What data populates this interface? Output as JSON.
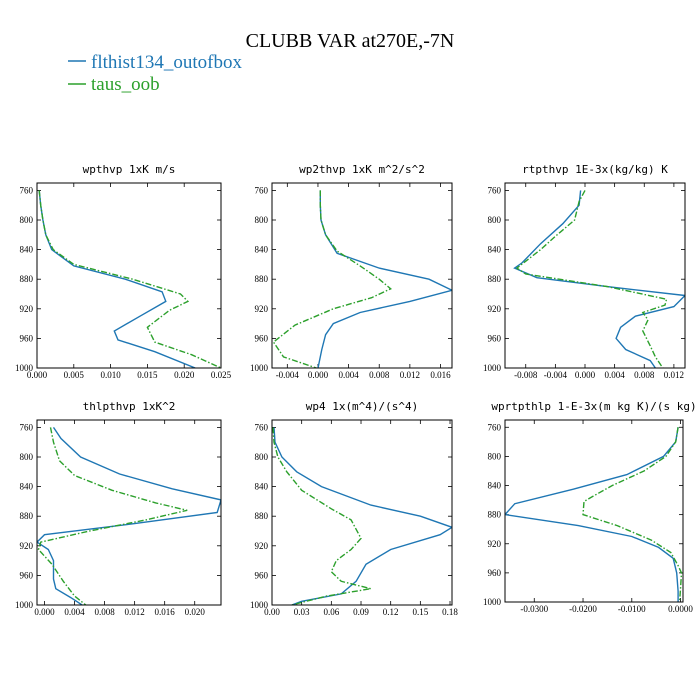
{
  "figure": {
    "title": "CLUBB VAR at270E,-7N",
    "legend": [
      {
        "label": "flthist134_outofbox",
        "color": "#1f77b4",
        "dash": "solid"
      },
      {
        "label": "taus_oob",
        "color": "#2ca02c",
        "dash": "dashdot"
      }
    ]
  },
  "chart_data": [
    {
      "type": "line",
      "title": "wpthvp  1xK m/s",
      "xlim": [
        0,
        0.025
      ],
      "xticks": [
        0.0,
        0.005,
        0.01,
        0.015,
        0.02,
        0.025
      ],
      "xtick_labels": [
        "0.000",
        "0.005",
        "0.010",
        "0.015",
        "0.020",
        "0.025"
      ],
      "ylim": [
        1000,
        750
      ],
      "yticks": [
        760,
        800,
        840,
        880,
        920,
        960,
        1000
      ],
      "series": [
        {
          "name": "flthist134_outofbox",
          "points": [
            [
              0.0003,
              760
            ],
            [
              0.0005,
              780
            ],
            [
              0.0008,
              800
            ],
            [
              0.0012,
              820
            ],
            [
              0.002,
              840
            ],
            [
              0.005,
              862
            ],
            [
              0.012,
              880
            ],
            [
              0.017,
              897
            ],
            [
              0.0175,
              910
            ],
            [
              0.014,
              930
            ],
            [
              0.0105,
              950
            ],
            [
              0.011,
              962
            ],
            [
              0.016,
              978
            ],
            [
              0.0215,
              1000
            ]
          ]
        },
        {
          "name": "taus_oob",
          "points": [
            [
              0.0003,
              760
            ],
            [
              0.0005,
              780
            ],
            [
              0.0008,
              800
            ],
            [
              0.0012,
              820
            ],
            [
              0.0022,
              840
            ],
            [
              0.005,
              860
            ],
            [
              0.013,
              880
            ],
            [
              0.0195,
              900
            ],
            [
              0.0205,
              910
            ],
            [
              0.018,
              922
            ],
            [
              0.015,
              945
            ],
            [
              0.016,
              965
            ],
            [
              0.021,
              982
            ],
            [
              0.025,
              1000
            ]
          ]
        }
      ]
    },
    {
      "type": "line",
      "title": "wp2thvp  1xK m^2/s^2",
      "xlim": [
        -0.006,
        0.0175
      ],
      "xticks": [
        -0.004,
        0.0,
        0.004,
        0.008,
        0.012,
        0.016
      ],
      "xtick_labels": [
        "-0.004",
        "0.000",
        "0.004",
        "0.008",
        "0.012",
        "0.016"
      ],
      "ylim": [
        1000,
        750
      ],
      "yticks": [
        760,
        800,
        840,
        880,
        920,
        960,
        1000
      ],
      "series": [
        {
          "name": "flthist134_outofbox",
          "points": [
            [
              0.0003,
              760
            ],
            [
              0.0003,
              780
            ],
            [
              0.0004,
              800
            ],
            [
              0.001,
              820
            ],
            [
              0.0025,
              845
            ],
            [
              0.008,
              865
            ],
            [
              0.0145,
              880
            ],
            [
              0.0175,
              895
            ],
            [
              0.012,
              910
            ],
            [
              0.0055,
              925
            ],
            [
              0.002,
              940
            ],
            [
              0.001,
              955
            ],
            [
              0.0005,
              975
            ],
            [
              0.0,
              1000
            ]
          ]
        },
        {
          "name": "taus_oob",
          "points": [
            [
              0.0003,
              760
            ],
            [
              0.0003,
              780
            ],
            [
              0.0004,
              800
            ],
            [
              0.001,
              820
            ],
            [
              0.0025,
              842
            ],
            [
              0.0055,
              862
            ],
            [
              0.008,
              880
            ],
            [
              0.0095,
              893
            ],
            [
              0.007,
              905
            ],
            [
              0.002,
              920
            ],
            [
              -0.003,
              942
            ],
            [
              -0.0058,
              965
            ],
            [
              -0.0045,
              985
            ],
            [
              -0.0002,
              1000
            ]
          ]
        }
      ]
    },
    {
      "type": "line",
      "title": "rtpthvp  1E-3x(kg/kg) K",
      "xlim": [
        -0.0108,
        0.0135
      ],
      "xticks": [
        -0.008,
        -0.004,
        0.0,
        0.004,
        0.008,
        0.012
      ],
      "xtick_labels": [
        "-0.008",
        "-0.004",
        "0.000",
        "0.004",
        "0.008",
        "0.012"
      ],
      "ylim": [
        1000,
        750
      ],
      "yticks": [
        760,
        800,
        840,
        880,
        920,
        960,
        1000
      ],
      "series": [
        {
          "name": "flthist134_outofbox",
          "points": [
            [
              -0.0006,
              760
            ],
            [
              -0.0008,
              780
            ],
            [
              -0.003,
              805
            ],
            [
              -0.006,
              832
            ],
            [
              -0.0085,
              858
            ],
            [
              -0.0095,
              865
            ],
            [
              -0.0065,
              878
            ],
            [
              0.003,
              890
            ],
            [
              0.0135,
              902
            ],
            [
              0.012,
              917
            ],
            [
              0.0068,
              930
            ],
            [
              0.0048,
              945
            ],
            [
              0.0042,
              960
            ],
            [
              0.0055,
              975
            ],
            [
              0.0088,
              990
            ],
            [
              0.0095,
              1000
            ]
          ]
        },
        {
          "name": "taus_oob",
          "points": [
            [
              0.0,
              760
            ],
            [
              -0.0008,
              775
            ],
            [
              -0.0014,
              800
            ],
            [
              -0.004,
              822
            ],
            [
              -0.006,
              840
            ],
            [
              -0.0092,
              865
            ],
            [
              -0.008,
              873
            ],
            [
              0.003,
              890
            ],
            [
              0.011,
              907
            ],
            [
              0.0108,
              915
            ],
            [
              0.0078,
              925
            ],
            [
              0.0085,
              935
            ],
            [
              0.0078,
              950
            ],
            [
              0.0088,
              970
            ],
            [
              0.0095,
              985
            ],
            [
              0.0105,
              1000
            ]
          ]
        }
      ]
    },
    {
      "type": "line",
      "title": "thlpthvp  1xK^2",
      "xlim": [
        -0.001,
        0.0235
      ],
      "xticks": [
        0.0,
        0.004,
        0.008,
        0.012,
        0.016,
        0.02
      ],
      "xtick_labels": [
        "0.000",
        "0.004",
        "0.008",
        "0.012",
        "0.016",
        "0.020"
      ],
      "ylim": [
        1000,
        750
      ],
      "yticks": [
        760,
        800,
        840,
        880,
        920,
        960,
        1000
      ],
      "series": [
        {
          "name": "flthist134_outofbox",
          "points": [
            [
              0.0012,
              760
            ],
            [
              0.0022,
              775
            ],
            [
              0.0048,
              800
            ],
            [
              0.01,
              823
            ],
            [
              0.017,
              843
            ],
            [
              0.0235,
              858
            ],
            [
              0.023,
              875
            ],
            [
              0.012,
              890
            ],
            [
              0.0,
              905
            ],
            [
              -0.001,
              915
            ],
            [
              0.0005,
              925
            ],
            [
              0.0012,
              940
            ],
            [
              0.0012,
              965
            ],
            [
              0.0015,
              978
            ],
            [
              0.0035,
              990
            ],
            [
              0.005,
              1000
            ]
          ]
        },
        {
          "name": "taus_oob",
          "points": [
            [
              0.0008,
              760
            ],
            [
              0.0012,
              780
            ],
            [
              0.002,
              805
            ],
            [
              0.004,
              825
            ],
            [
              0.009,
              845
            ],
            [
              0.0148,
              862
            ],
            [
              0.019,
              872
            ],
            [
              0.0135,
              885
            ],
            [
              0.006,
              900
            ],
            [
              -0.0005,
              915
            ],
            [
              -0.0008,
              925
            ],
            [
              0.001,
              945
            ],
            [
              0.0025,
              968
            ],
            [
              0.004,
              988
            ],
            [
              0.0055,
              1000
            ]
          ]
        }
      ]
    },
    {
      "type": "line",
      "title": "wp4  1x(m^4)/(s^4)",
      "xlim": [
        0,
        0.182
      ],
      "xticks": [
        0.0,
        0.03,
        0.06,
        0.09,
        0.12,
        0.15,
        0.18
      ],
      "xtick_labels": [
        "0.00",
        "0.03",
        "0.06",
        "0.09",
        "0.12",
        "0.15",
        "0.18"
      ],
      "ylim": [
        1000,
        750
      ],
      "yticks": [
        760,
        800,
        840,
        880,
        920,
        960,
        1000
      ],
      "series": [
        {
          "name": "flthist134_outofbox",
          "points": [
            [
              0.002,
              760
            ],
            [
              0.003,
              780
            ],
            [
              0.01,
              800
            ],
            [
              0.025,
              820
            ],
            [
              0.05,
              840
            ],
            [
              0.1,
              865
            ],
            [
              0.15,
              880
            ],
            [
              0.182,
              895
            ],
            [
              0.17,
              905
            ],
            [
              0.12,
              925
            ],
            [
              0.095,
              945
            ],
            [
              0.085,
              968
            ],
            [
              0.07,
              985
            ],
            [
              0.03,
              995
            ],
            [
              0.02,
              1000
            ]
          ]
        },
        {
          "name": "taus_oob",
          "points": [
            [
              0.001,
              760
            ],
            [
              0.002,
              780
            ],
            [
              0.006,
              800
            ],
            [
              0.015,
              820
            ],
            [
              0.03,
              845
            ],
            [
              0.06,
              870
            ],
            [
              0.08,
              885
            ],
            [
              0.09,
              910
            ],
            [
              0.08,
              925
            ],
            [
              0.065,
              940
            ],
            [
              0.06,
              955
            ],
            [
              0.07,
              968
            ],
            [
              0.1,
              978
            ],
            [
              0.055,
              988
            ],
            [
              0.02,
              1000
            ]
          ]
        }
      ]
    },
    {
      "type": "line",
      "title": "wprtpthlp  1-E-3x(m kg K)/(s kg)",
      "xlim": [
        -0.036,
        0.0005
      ],
      "xticks": [
        -0.03,
        -0.02,
        -0.01,
        0.0
      ],
      "xtick_labels": [
        "-0.0300",
        "-0.0200",
        "-0.0100",
        "0.0000"
      ],
      "ylim": [
        1000,
        750
      ],
      "yticks": [
        760,
        800,
        840,
        880,
        920,
        960,
        1000
      ],
      "series": [
        {
          "name": "flthist134_outofbox",
          "points": [
            [
              -0.0005,
              760
            ],
            [
              -0.001,
              780
            ],
            [
              -0.0035,
              800
            ],
            [
              -0.011,
              825
            ],
            [
              -0.022,
              845
            ],
            [
              -0.034,
              865
            ],
            [
              -0.036,
              880
            ],
            [
              -0.021,
              895
            ],
            [
              -0.01,
              910
            ],
            [
              -0.0045,
              925
            ],
            [
              -0.0015,
              940
            ],
            [
              -0.0008,
              960
            ],
            [
              -0.0005,
              985
            ],
            [
              -0.0005,
              1000
            ]
          ]
        },
        {
          "name": "taus_oob",
          "points": [
            [
              -0.0005,
              760
            ],
            [
              -0.001,
              780
            ],
            [
              -0.003,
              800
            ],
            [
              -0.0075,
              820
            ],
            [
              -0.014,
              840
            ],
            [
              -0.018,
              855
            ],
            [
              -0.0198,
              862
            ],
            [
              -0.02,
              880
            ],
            [
              -0.013,
              895
            ],
            [
              -0.006,
              915
            ],
            [
              -0.002,
              932
            ],
            [
              -0.0005,
              950
            ],
            [
              0.0002,
              960
            ],
            [
              0.0,
              980
            ],
            [
              -0.0002,
              1000
            ]
          ]
        }
      ]
    }
  ]
}
